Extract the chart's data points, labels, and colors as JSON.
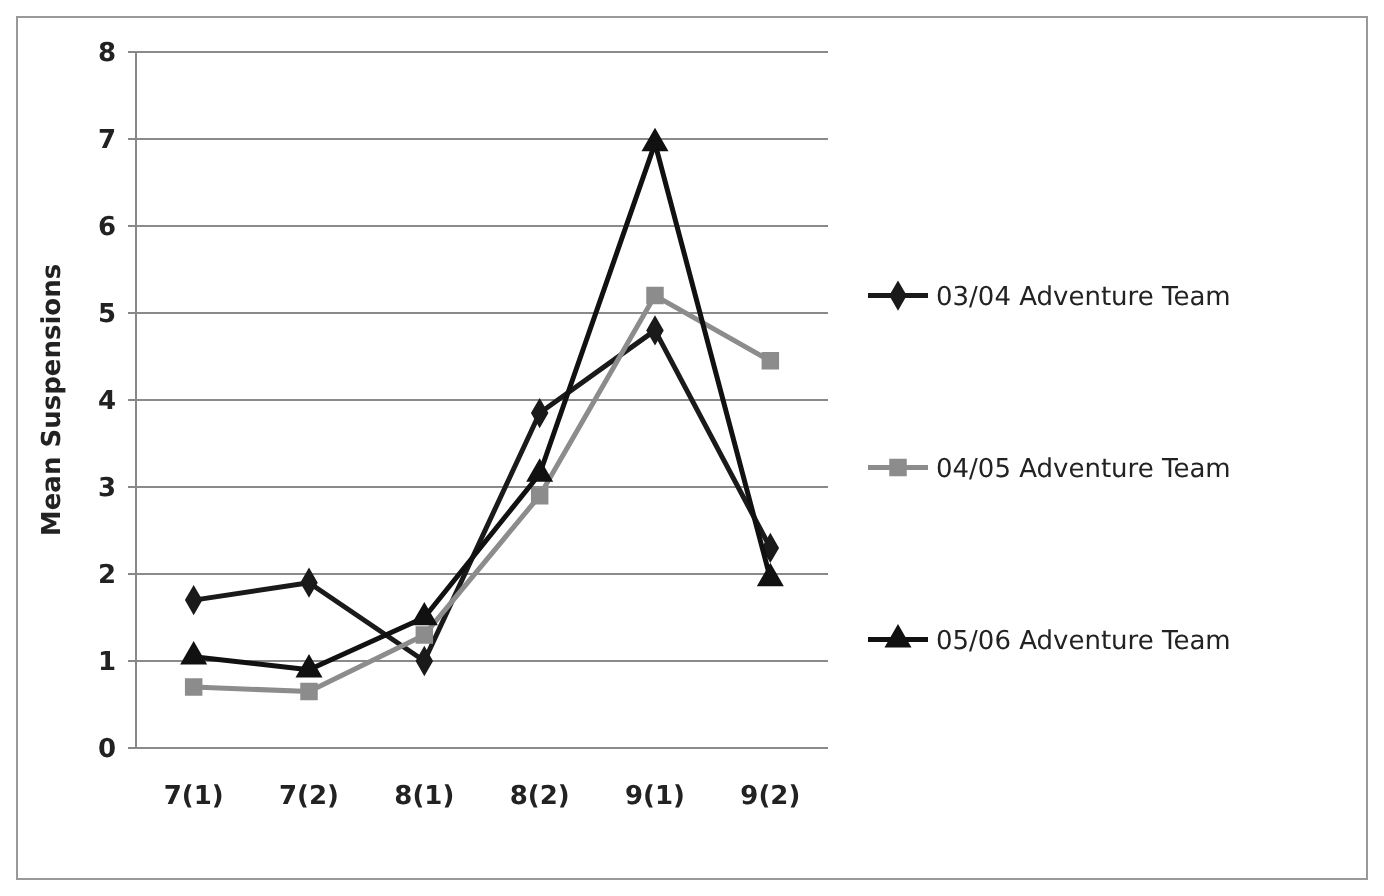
{
  "chart_data": {
    "type": "line",
    "ylabel": "Mean Suspensions",
    "categories": [
      "7(1)",
      "7(2)",
      "8(1)",
      "8(2)",
      "9(1)",
      "9(2)"
    ],
    "ylim": [
      0,
      8
    ],
    "yticks": [
      0,
      1,
      2,
      3,
      4,
      5,
      6,
      7,
      8
    ],
    "grid": "y",
    "legend": "right",
    "series": [
      {
        "name": "03/04 Adventure Team",
        "color": "#1a1a1a",
        "marker": "diamond",
        "values": [
          1.7,
          1.9,
          1.0,
          3.85,
          4.8,
          2.3
        ]
      },
      {
        "name": "04/05 Adventure Team",
        "color": "#8c8c8c",
        "marker": "square",
        "values": [
          0.7,
          0.65,
          1.3,
          2.9,
          5.2,
          4.45
        ]
      },
      {
        "name": "05/06 Adventure Team",
        "color": "#111111",
        "marker": "triangle",
        "values": [
          1.05,
          0.9,
          1.5,
          3.15,
          6.95,
          1.95
        ]
      }
    ]
  }
}
